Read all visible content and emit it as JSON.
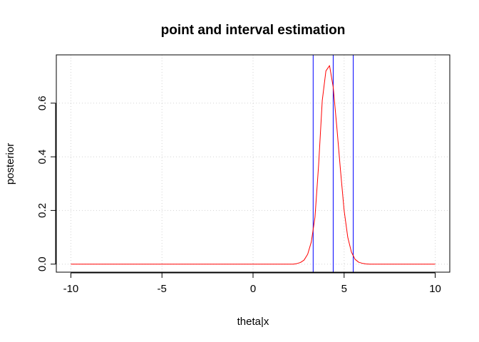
{
  "chart_data": {
    "type": "line",
    "title": "point and interval estimation",
    "xlabel": "theta|x",
    "ylabel": "posterior",
    "xlim": [
      -10.8,
      10.8
    ],
    "ylim": [
      -0.03,
      0.78
    ],
    "x_ticks": [
      -10,
      -5,
      0,
      5,
      10
    ],
    "x_tick_labels": [
      "-10",
      "-5",
      "0",
      "5",
      "10"
    ],
    "y_ticks": [
      0.0,
      0.2,
      0.4,
      0.6
    ],
    "y_tick_labels": [
      "0.0",
      "0.2",
      "0.4",
      "0.6"
    ],
    "grid": true,
    "series": [
      {
        "color": "#ff0000",
        "x": [
          -10,
          2.2,
          2.4,
          2.6,
          2.8,
          3.0,
          3.2,
          3.4,
          3.6,
          3.8,
          4.0,
          4.2,
          4.4,
          4.6,
          4.8,
          5.0,
          5.2,
          5.4,
          5.6,
          5.8,
          6.0,
          6.2,
          6.4,
          6.6,
          10
        ],
        "y": [
          0.0,
          0.0,
          0.002,
          0.006,
          0.015,
          0.037,
          0.083,
          0.175,
          0.37,
          0.61,
          0.72,
          0.74,
          0.66,
          0.51,
          0.35,
          0.2,
          0.1,
          0.045,
          0.018,
          0.007,
          0.003,
          0.001,
          0.0,
          0.0,
          0.0
        ]
      }
    ],
    "vlines": [
      {
        "x": 3.3,
        "color": "#0000ff"
      },
      {
        "x": 4.4,
        "color": "#0000ff"
      },
      {
        "x": 5.5,
        "color": "#0000ff"
      }
    ]
  }
}
